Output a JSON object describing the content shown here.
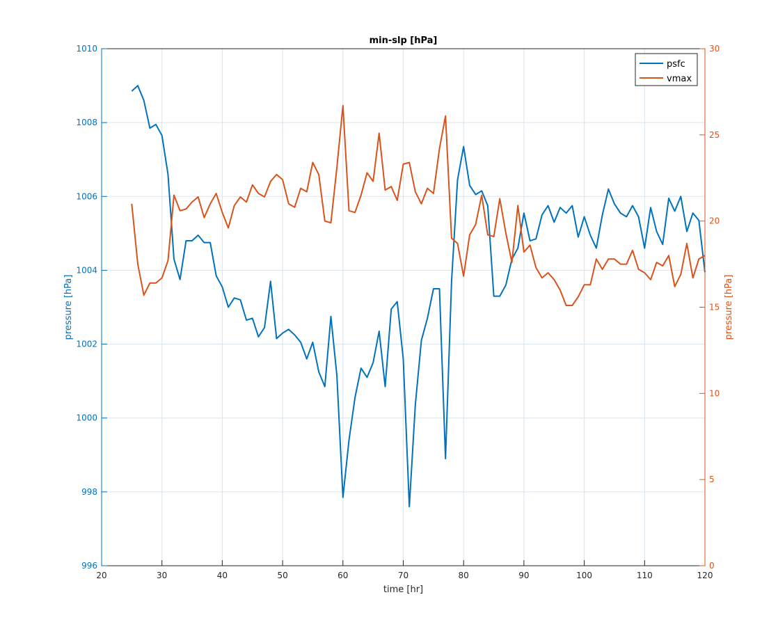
{
  "colors": {
    "psfc": "#0072BD",
    "vmax": "#D95319",
    "axis": "#262626",
    "grid": "#d9e3ec",
    "background": "#ffffff"
  },
  "chart_data": {
    "type": "line",
    "title": "min-slp [hPa]",
    "xlabel": "time [hr]",
    "ylabel_left": "pressure [hPa]",
    "ylabel_right": "pressure [hPa]",
    "xlim": [
      20,
      120
    ],
    "ylim_left": [
      996,
      1010
    ],
    "ylim_right": [
      0,
      30
    ],
    "xticks": [
      20,
      30,
      40,
      50,
      60,
      70,
      80,
      90,
      100,
      110,
      120
    ],
    "yticks_left": [
      996,
      998,
      1000,
      1002,
      1004,
      1006,
      1008,
      1010
    ],
    "yticks_right": [
      0,
      5,
      10,
      15,
      20,
      25,
      30
    ],
    "grid": true,
    "legend_location": "top-right",
    "series": [
      {
        "name": "psfc",
        "axis": "left",
        "x": [
          25,
          26,
          27,
          28,
          29,
          30,
          31,
          32,
          33,
          34,
          35,
          36,
          37,
          38,
          39,
          40,
          41,
          42,
          43,
          44,
          45,
          46,
          47,
          48,
          49,
          50,
          51,
          52,
          53,
          54,
          55,
          56,
          57,
          58,
          59,
          60,
          61,
          62,
          63,
          64,
          65,
          66,
          67,
          68,
          69,
          70,
          71,
          72,
          73,
          74,
          75,
          76,
          77,
          78,
          79,
          80,
          81,
          82,
          83,
          84,
          85,
          86,
          87,
          88,
          89,
          90,
          91,
          92,
          93,
          94,
          95,
          96,
          97,
          98,
          99,
          100,
          101,
          102,
          103,
          104,
          105,
          106,
          107,
          108,
          109,
          110,
          111,
          112,
          113,
          114,
          115,
          116,
          117,
          118,
          119,
          120
        ],
        "y": [
          1008.85,
          1009.0,
          1008.6,
          1007.85,
          1007.95,
          1007.65,
          1006.6,
          1004.3,
          1003.75,
          1004.8,
          1004.8,
          1004.95,
          1004.75,
          1004.75,
          1003.85,
          1003.55,
          1003.0,
          1003.25,
          1003.2,
          1002.65,
          1002.7,
          1002.2,
          1002.45,
          1003.7,
          1002.15,
          1002.3,
          1002.4,
          1002.25,
          1002.05,
          1001.6,
          1002.05,
          1001.25,
          1000.85,
          1002.75,
          1001.15,
          997.85,
          999.4,
          1000.55,
          1001.35,
          1001.1,
          1001.5,
          1002.35,
          1000.85,
          1002.95,
          1003.15,
          1001.6,
          997.6,
          1000.35,
          1002.1,
          1002.7,
          1003.5,
          1003.5,
          998.9,
          1003.7,
          1006.45,
          1007.35,
          1006.3,
          1006.05,
          1006.15,
          1005.75,
          1003.3,
          1003.3,
          1003.6,
          1004.3,
          1004.6,
          1005.55,
          1004.8,
          1004.85,
          1005.5,
          1005.75,
          1005.3,
          1005.7,
          1005.55,
          1005.75,
          1004.9,
          1005.45,
          1004.95,
          1004.6,
          1005.5,
          1006.2,
          1005.8,
          1005.55,
          1005.45,
          1005.75,
          1005.45,
          1004.6,
          1005.7,
          1005.05,
          1004.7,
          1005.95,
          1005.6,
          1006.0,
          1005.05,
          1005.55,
          1005.35,
          1003.95
        ]
      },
      {
        "name": "vmax",
        "axis": "right",
        "x": [
          25,
          26,
          27,
          28,
          29,
          30,
          31,
          32,
          33,
          34,
          35,
          36,
          37,
          38,
          39,
          40,
          41,
          42,
          43,
          44,
          45,
          46,
          47,
          48,
          49,
          50,
          51,
          52,
          53,
          54,
          55,
          56,
          57,
          58,
          59,
          60,
          61,
          62,
          63,
          64,
          65,
          66,
          67,
          68,
          69,
          70,
          71,
          72,
          73,
          74,
          75,
          76,
          77,
          78,
          79,
          80,
          81,
          82,
          83,
          84,
          85,
          86,
          87,
          88,
          89,
          90,
          91,
          92,
          93,
          94,
          95,
          96,
          97,
          98,
          99,
          100,
          101,
          102,
          103,
          104,
          105,
          106,
          107,
          108,
          109,
          110,
          111,
          112,
          113,
          114,
          115,
          116,
          117,
          118,
          119,
          120
        ],
        "y": [
          21.0,
          17.5,
          15.7,
          16.4,
          16.4,
          16.7,
          17.7,
          21.5,
          20.6,
          20.7,
          21.1,
          21.4,
          20.2,
          21.0,
          21.6,
          20.5,
          19.6,
          20.9,
          21.4,
          21.1,
          22.1,
          21.6,
          21.4,
          22.3,
          22.7,
          22.4,
          21.0,
          20.8,
          21.9,
          21.7,
          23.4,
          22.7,
          20.0,
          19.9,
          23.1,
          26.7,
          20.6,
          20.5,
          21.5,
          22.8,
          22.3,
          25.1,
          21.8,
          22.0,
          21.2,
          23.3,
          23.4,
          21.7,
          21.0,
          21.9,
          21.6,
          24.2,
          26.1,
          19.0,
          18.7,
          16.8,
          19.2,
          19.8,
          21.5,
          19.2,
          19.1,
          21.3,
          19.3,
          17.6,
          20.9,
          18.2,
          18.6,
          17.3,
          16.7,
          17.0,
          16.6,
          16.0,
          15.1,
          15.1,
          15.6,
          16.3,
          16.3,
          17.8,
          17.2,
          17.8,
          17.8,
          17.5,
          17.5,
          18.3,
          17.2,
          17.0,
          16.6,
          17.6,
          17.4,
          18.0,
          16.2,
          16.9,
          18.7,
          16.7,
          17.8,
          18.0
        ]
      }
    ]
  }
}
